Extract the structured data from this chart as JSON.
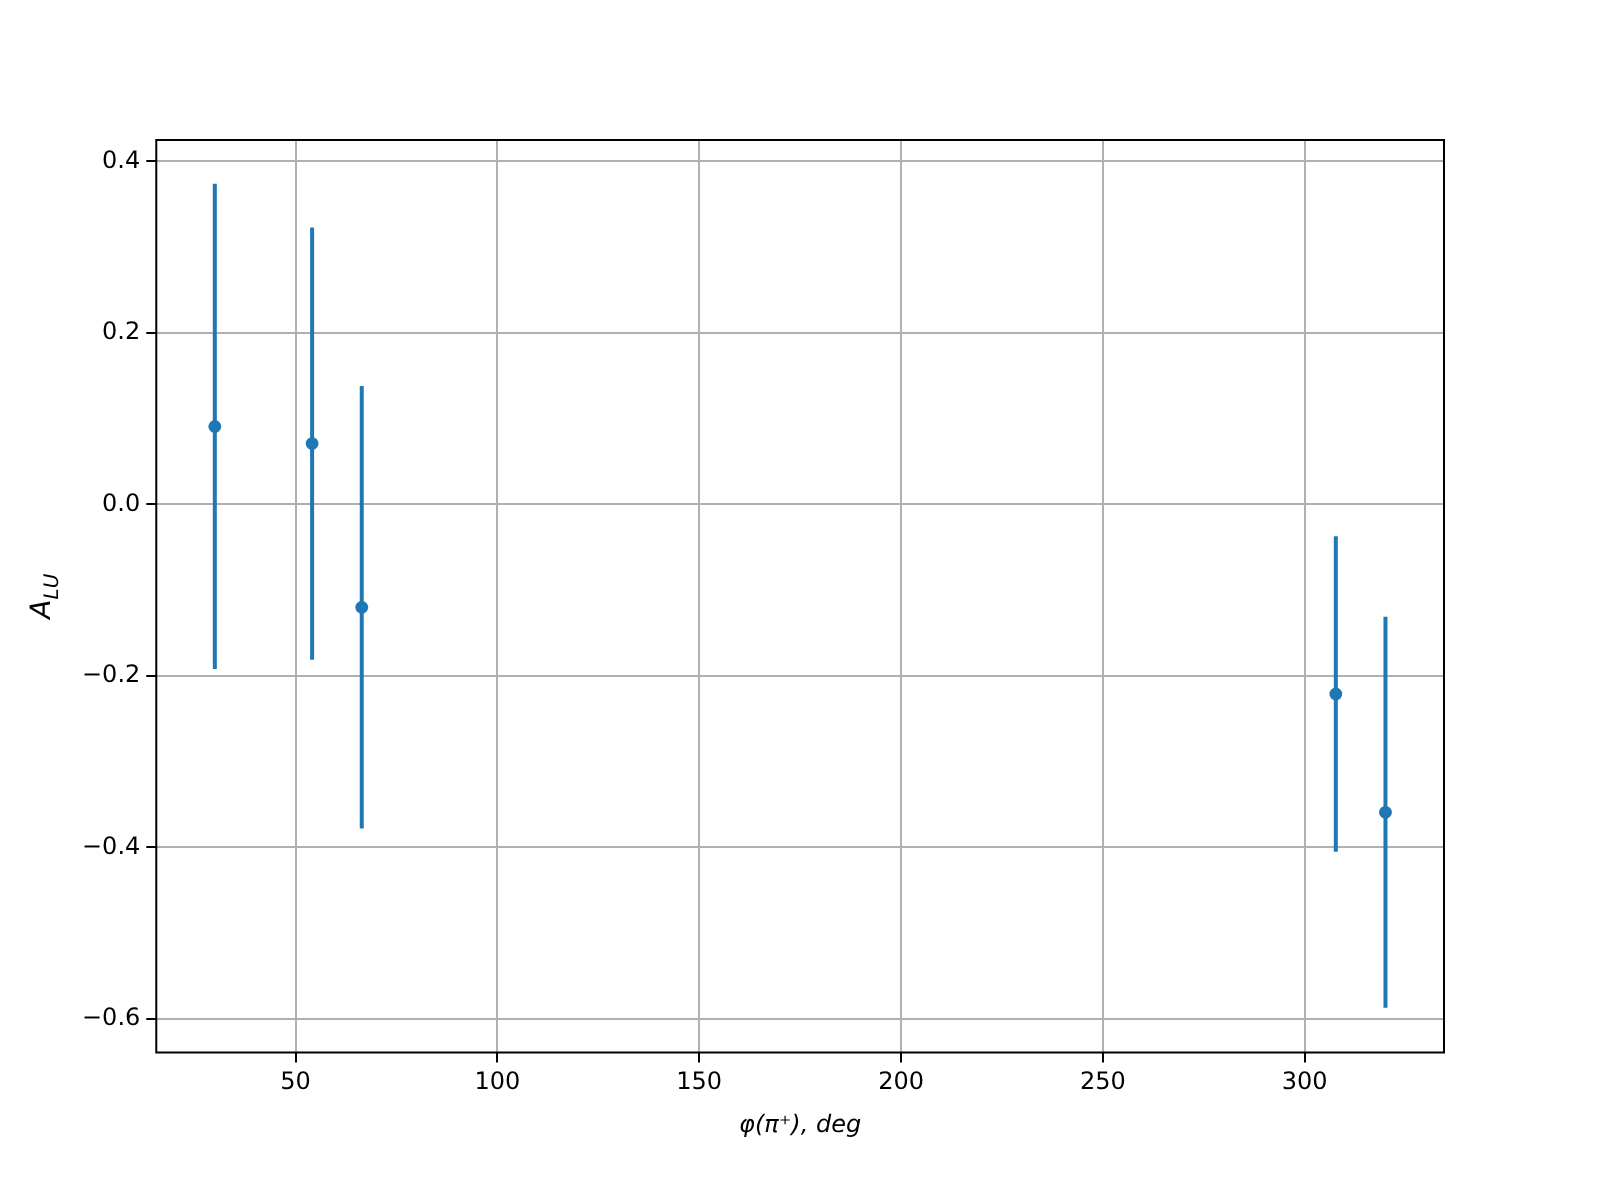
{
  "chart_data": {
    "type": "scatter",
    "xlabel": "φ(π⁺), deg",
    "ylabel": "A$_{LU}$",
    "x": [
      30,
      54.1,
      66.4,
      307.7,
      320
    ],
    "series": [
      {
        "color": "#1f77b4",
        "values": [
          0.091,
          0.071,
          -0.12,
          -0.221,
          -0.359
        ],
        "errors": [
          0.283,
          0.252,
          0.258,
          0.184,
          0.228
        ]
      }
    ],
    "xlim": [
      15.5,
      334.5
    ],
    "xticks": [
      50,
      100,
      150,
      200,
      250,
      300
    ],
    "ylim": [
      -0.639,
      0.425
    ],
    "yticks": [
      {
        "value": -0.6,
        "label": "−0.6"
      },
      {
        "value": -0.4,
        "label": "−0.4"
      },
      {
        "value": -0.2,
        "label": "−0.2"
      },
      {
        "value": 0,
        "label": "0.0"
      },
      {
        "value": 0.2,
        "label": "0.2"
      },
      {
        "value": 0.4,
        "label": "0.4"
      }
    ],
    "grid": true,
    "marker": "circle",
    "legend": false
  }
}
